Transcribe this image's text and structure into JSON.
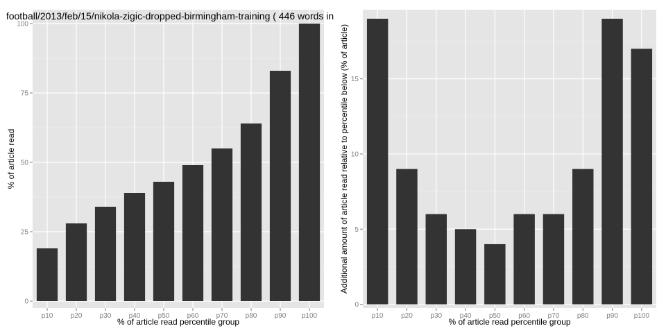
{
  "chart_data": [
    {
      "type": "bar",
      "title": "football/2013/feb/15/nikola-zigic-dropped-birmingham-training ( 446 words in",
      "xlabel": "% of article read percentile group",
      "ylabel": "% of article read",
      "categories": [
        "p10",
        "p20",
        "p30",
        "p40",
        "p50",
        "p60",
        "p70",
        "p80",
        "p90",
        "p100"
      ],
      "values": [
        19,
        28,
        34,
        39,
        43,
        49,
        55,
        64,
        83,
        100
      ],
      "ylim": [
        -2.5,
        105
      ],
      "yticks": [
        0,
        25,
        50,
        75,
        100
      ],
      "grid": true
    },
    {
      "type": "bar",
      "title": "",
      "xlabel": "% of article read percentile group",
      "ylabel": "Additional amount of article read relative to percentile below (% of article)",
      "categories": [
        "p10",
        "p20",
        "p30",
        "p40",
        "p50",
        "p60",
        "p70",
        "p80",
        "p90",
        "p100"
      ],
      "values": [
        19,
        9,
        6,
        5,
        4,
        6,
        6,
        9,
        19,
        17
      ],
      "ylim": [
        -0.25,
        19.6
      ],
      "yticks": [
        0,
        5,
        10,
        15
      ],
      "grid": true
    }
  ],
  "colors": {
    "panel_background": "#e5e5e5",
    "bar_fill": "#333333",
    "grid": "#ffffff",
    "tick_text": "#7f7f7f"
  }
}
